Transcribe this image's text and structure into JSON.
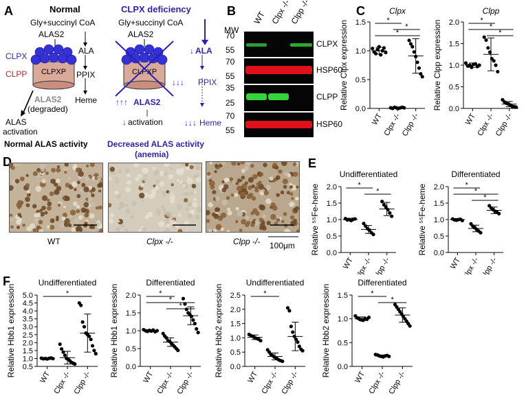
{
  "panels": {
    "A": {
      "letter": "A",
      "normal": {
        "title": "Normal",
        "substrate": "Gly+succinyl CoA",
        "enzyme": "ALAS2",
        "clpx": "CLPX",
        "clpp": "CLPP",
        "complex": "CLPXP",
        "ala": "ALA",
        "ppix": "PPIX",
        "heme": "Heme",
        "degraded": "ALAS2",
        "degraded_note": "(degraded)",
        "activation_1": "ALAS",
        "activation_2": "activation",
        "footer": "Normal ALAS activity"
      },
      "deficiency": {
        "title": "CLPX deficiency",
        "substrate": "Gly+succinyl CoA",
        "enzyme": "ALAS2",
        "complex": "CLPXP",
        "ala": "ALA",
        "ppix": "PPIX",
        "heme": "Heme",
        "alas2": "ALAS2",
        "activation": "activation",
        "footer_1": "Decreased ALAS activity",
        "footer_2": "(anemia)"
      }
    },
    "B": {
      "letter": "B",
      "mw_label": "MW",
      "lanes": [
        "WT",
        "Clpx -/-",
        "Clpp -/-"
      ],
      "blots": [
        {
          "label": "CLPX",
          "mw": [
            "70",
            "55"
          ]
        },
        {
          "label": "HSP60",
          "mw": [
            "70",
            "55"
          ]
        },
        {
          "label": "CLPP",
          "mw": [
            "35",
            "25"
          ]
        },
        {
          "label": "HSP60",
          "mw": [
            "70",
            "55"
          ]
        }
      ]
    },
    "D": {
      "letter": "D",
      "captions": [
        "WT",
        "Clpx -/-",
        "Clpp -/-"
      ],
      "scale_label": "100μm"
    },
    "colors": {
      "blue": "#2c1fb8",
      "clpp_red": "#b0282a",
      "band_green": "#35d23a",
      "band_red": "#e0101a"
    }
  },
  "chart_data": [
    {
      "panel": "C",
      "type": "scatter",
      "title": "Clpx",
      "ylabel": "Relative Clpx expression",
      "ylim": [
        0,
        1.5
      ],
      "yticks": [
        "0.0",
        "0.5",
        "1.0",
        "1.5"
      ],
      "categories": [
        "WT",
        "Clpx -/-",
        "Clpp -/-"
      ],
      "means": [
        1.0,
        0.01,
        0.91
      ],
      "sd": [
        0.06,
        0.01,
        0.3
      ],
      "points": [
        [
          1.04,
          0.98,
          0.95,
          1.02,
          1.07,
          0.93,
          1.0,
          1.05,
          0.97
        ],
        [
          0.01,
          0.0,
          0.02,
          0.01,
          0.0,
          0.01,
          0.02,
          0.01
        ],
        [
          1.18,
          1.12,
          1.07,
          0.98,
          0.9,
          0.8,
          0.7,
          0.6,
          0.55
        ]
      ],
      "sig": [
        [
          0,
          1,
          "*"
        ],
        [
          1,
          2,
          "*"
        ],
        [
          0,
          2,
          "*"
        ]
      ]
    },
    {
      "panel": "C",
      "type": "scatter",
      "title": "Clpp",
      "ylabel": "Relative Clpp expression",
      "ylim": [
        0,
        2.0
      ],
      "yticks": [
        "0.0",
        "0.5",
        "1.0",
        "1.5",
        "2.0"
      ],
      "categories": [
        "WT",
        "Clpx -/-",
        "Clpp -/-"
      ],
      "means": [
        1.0,
        1.25,
        0.1
      ],
      "sd": [
        0.05,
        0.38,
        0.06
      ],
      "points": [
        [
          1.05,
          0.98,
          1.0,
          0.95,
          1.02,
          1.03,
          0.97,
          1.0
        ],
        [
          1.65,
          1.58,
          1.4,
          1.3,
          1.15,
          1.1,
          1.0,
          0.85
        ],
        [
          0.2,
          0.15,
          0.12,
          0.1,
          0.08,
          0.05,
          0.04,
          0.03
        ]
      ],
      "sig": [
        [
          0,
          1,
          "*"
        ],
        [
          0,
          2,
          "*"
        ],
        [
          1,
          2,
          "*"
        ]
      ]
    },
    {
      "panel": "E",
      "type": "scatter",
      "title": "Undifferentiated",
      "ylabel": "Relative ⁵⁵Fe-heme",
      "ylim": [
        0,
        2.0
      ],
      "yticks": [
        "0.0",
        "0.5",
        "1.0",
        "1.5",
        "2.0"
      ],
      "categories": [
        "WT",
        "Clpx -/-",
        "Clpp -/-"
      ],
      "means": [
        1.0,
        0.7,
        1.32
      ],
      "sd": [
        0.04,
        0.12,
        0.2
      ],
      "points": [
        [
          1.03,
          0.99,
          1.0,
          0.97,
          1.01,
          1.02
        ],
        [
          0.88,
          0.8,
          0.72,
          0.68,
          0.6,
          0.55
        ],
        [
          1.55,
          1.45,
          1.38,
          1.3,
          1.2,
          1.1
        ]
      ],
      "sig": [
        [
          0,
          1,
          "*"
        ],
        [
          1,
          2,
          "*"
        ]
      ]
    },
    {
      "panel": "E",
      "type": "scatter",
      "title": "Differentiated",
      "ylabel": "Relative ⁵⁵Fe-heme",
      "ylim": [
        0,
        2.0
      ],
      "yticks": [
        "0.0",
        "0.5",
        "1.0",
        "1.5",
        "2.0"
      ],
      "categories": [
        "WT",
        "Clpx -/-",
        "Clpp -/-"
      ],
      "means": [
        1.0,
        0.73,
        1.28
      ],
      "sd": [
        0.03,
        0.1,
        0.1
      ],
      "points": [
        [
          1.02,
          0.99,
          0.98,
          1.0,
          1.01,
          0.97
        ],
        [
          0.87,
          0.8,
          0.75,
          0.7,
          0.65,
          0.6
        ],
        [
          1.42,
          1.35,
          1.3,
          1.25,
          1.22,
          1.18
        ]
      ],
      "sig": [
        [
          0,
          1,
          "*"
        ],
        [
          0,
          2,
          "*"
        ],
        [
          1,
          2,
          "*"
        ]
      ]
    },
    {
      "panel": "F",
      "type": "scatter",
      "title": "Undifferentiated",
      "ylabel": "Relative Hbb1 expression",
      "ylim": [
        0.5,
        5.0
      ],
      "yticks": [
        "0.5",
        "1.0",
        "1.5",
        "2.0",
        "2.5",
        "3.0",
        "3.5",
        "4.0",
        "4.5",
        "5.0"
      ],
      "categories": [
        "WT",
        "Clpx -/-",
        "Clpp -/-"
      ],
      "means": [
        1.0,
        1.05,
        2.6
      ],
      "sd": [
        0.03,
        0.4,
        1.2
      ],
      "points": [
        [
          1.02,
          0.98,
          1.0,
          0.97,
          1.01,
          1.03,
          0.99
        ],
        [
          1.9,
          1.6,
          1.4,
          1.2,
          1.0,
          0.95,
          0.85,
          0.75,
          0.7,
          0.65
        ],
        [
          4.5,
          4.35,
          3.3,
          3.0,
          2.6,
          2.5,
          2.4,
          2.2,
          1.8,
          1.5,
          1.3
        ]
      ],
      "sig": [
        [
          0,
          2,
          "*"
        ]
      ]
    },
    {
      "panel": "F",
      "type": "scatter",
      "title": "Differentiated",
      "ylabel": "Relative Hbb1 expression",
      "ylim": [
        0,
        2.0
      ],
      "yticks": [
        "0.0",
        "0.5",
        "1.0",
        "1.5",
        "2.0"
      ],
      "categories": [
        "WT",
        "Clpx -/-",
        "Clpp -/-"
      ],
      "means": [
        1.0,
        0.68,
        1.42
      ],
      "sd": [
        0.03,
        0.12,
        0.25
      ],
      "points": [
        [
          1.03,
          1.0,
          0.98,
          1.01,
          0.99,
          1.02,
          0.97,
          1.0
        ],
        [
          0.92,
          0.85,
          0.8,
          0.72,
          0.7,
          0.65,
          0.6,
          0.55,
          0.5,
          0.45
        ],
        [
          1.9,
          1.75,
          1.6,
          1.5,
          1.45,
          1.4,
          1.3,
          1.2,
          1.05,
          0.95
        ]
      ],
      "sig": [
        [
          0,
          1,
          "*"
        ],
        [
          0,
          2,
          "*"
        ],
        [
          1,
          2,
          "*"
        ]
      ]
    },
    {
      "panel": "F",
      "type": "scatter",
      "title": "Undifferentiated",
      "ylabel": "Relative Hbb2 expression",
      "ylim": [
        0,
        2.5
      ],
      "yticks": [
        "0.0",
        "0.5",
        "1.0",
        "1.5",
        "2.0",
        "2.5"
      ],
      "categories": [
        "WT",
        "Clpx -/-",
        "Clpp -/-"
      ],
      "means": [
        1.02,
        0.35,
        1.05
      ],
      "sd": [
        0.08,
        0.12,
        0.5
      ],
      "points": [
        [
          1.12,
          1.08,
          1.05,
          1.0,
          0.98,
          0.95,
          0.9
        ],
        [
          0.58,
          0.5,
          0.42,
          0.38,
          0.33,
          0.3,
          0.26,
          0.22,
          0.2,
          0.18
        ],
        [
          2.05,
          1.95,
          1.4,
          1.2,
          1.05,
          0.95,
          0.85,
          0.7,
          0.6,
          0.55
        ]
      ],
      "sig": [
        [
          0,
          1,
          "*"
        ]
      ]
    },
    {
      "panel": "F",
      "type": "scatter",
      "title": "Differentiated",
      "ylabel": "Relative Hbb2 expression",
      "ylim": [
        0,
        1.5
      ],
      "yticks": [
        "0.0",
        "0.5",
        "1.0",
        "1.5"
      ],
      "categories": [
        "WT",
        "Clpx -/-",
        "Clpp -/-"
      ],
      "means": [
        1.0,
        0.22,
        1.08
      ],
      "sd": [
        0.04,
        0.02,
        0.15
      ],
      "points": [
        [
          1.06,
          1.02,
          1.0,
          0.98,
          0.97,
          1.01,
          0.99,
          1.03
        ],
        [
          0.25,
          0.24,
          0.22,
          0.21,
          0.2,
          0.22,
          0.23,
          0.21
        ],
        [
          1.3,
          1.25,
          1.2,
          1.15,
          1.1,
          1.05,
          1.0,
          0.95,
          0.9,
          0.85
        ]
      ],
      "sig": [
        [
          0,
          1,
          "*"
        ],
        [
          1,
          2,
          "*"
        ]
      ]
    }
  ]
}
